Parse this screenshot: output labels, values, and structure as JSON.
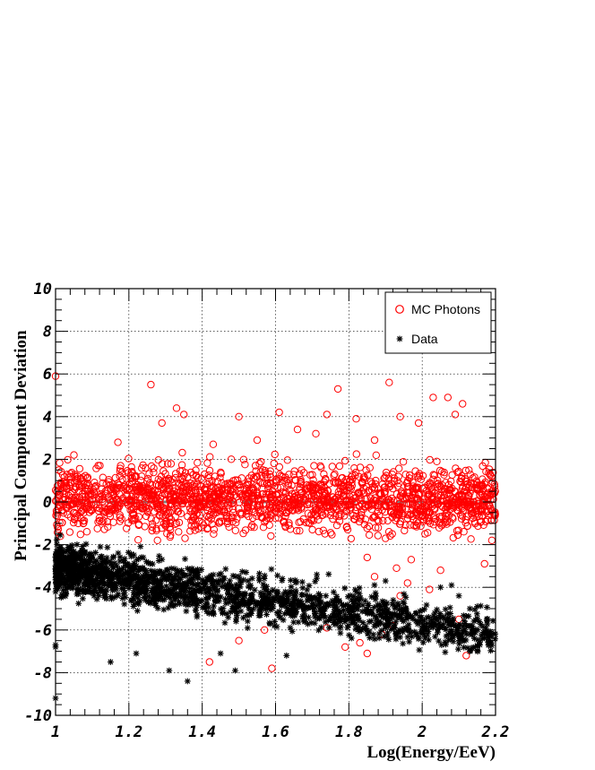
{
  "chart_data": {
    "type": "scatter",
    "title": "",
    "xlabel": "Log(Energy/EeV)",
    "ylabel": "Principal Component Deviation",
    "xlim": [
      1,
      2.2
    ],
    "ylim": [
      -10,
      10
    ],
    "x_ticks": [
      "1",
      "1.2",
      "1.4",
      "1.6",
      "1.8",
      "2",
      "2.2"
    ],
    "y_ticks": [
      "-10",
      "-8",
      "-6",
      "-4",
      "-2",
      "0",
      "2",
      "4",
      "6",
      "8",
      "10"
    ],
    "grid": true,
    "legend_position": "top-right",
    "reference_line": {
      "y": 0,
      "style": "dashed",
      "color": "#808080"
    },
    "series": [
      {
        "name": "MC Photons",
        "marker": "open-circle",
        "color": "#ff0000",
        "points": [
          [
            1.0,
            5.9
          ],
          [
            1.26,
            5.5
          ],
          [
            1.35,
            4.1
          ],
          [
            1.5,
            4.0
          ],
          [
            1.61,
            4.2
          ],
          [
            1.77,
            5.3
          ],
          [
            1.91,
            5.6
          ],
          [
            2.03,
            4.9
          ],
          [
            2.07,
            4.9
          ],
          [
            2.11,
            4.6
          ],
          [
            1.94,
            4.0
          ],
          [
            1.82,
            3.9
          ],
          [
            1.74,
            4.1
          ],
          [
            1.29,
            3.7
          ],
          [
            1.05,
            2.2
          ],
          [
            1.17,
            2.8
          ],
          [
            1.43,
            2.7
          ],
          [
            1.66,
            3.4
          ],
          [
            1.87,
            2.9
          ],
          [
            1.99,
            3.7
          ],
          [
            2.04,
            1.9
          ],
          [
            2.15,
            0.9
          ],
          [
            2.19,
            0.5
          ],
          [
            2.19,
            -1.8
          ],
          [
            2.17,
            -2.9
          ],
          [
            1.97,
            -2.7
          ],
          [
            1.93,
            -3.1
          ],
          [
            1.85,
            -2.6
          ],
          [
            1.79,
            -6.8
          ],
          [
            1.83,
            -6.6
          ],
          [
            1.85,
            -7.1
          ],
          [
            1.87,
            -3.5
          ],
          [
            1.59,
            -7.8
          ],
          [
            1.42,
            -7.5
          ],
          [
            1.5,
            -6.5
          ],
          [
            1.96,
            -3.8
          ],
          [
            2.02,
            -4.1
          ],
          [
            1.94,
            -4.4
          ],
          [
            2.05,
            -3.2
          ],
          [
            1.33,
            4.4
          ],
          [
            1.55,
            2.9
          ],
          [
            1.71,
            3.2
          ],
          [
            2.09,
            4.1
          ],
          [
            1.89,
            -6.2
          ],
          [
            1.92,
            -5.8
          ],
          [
            1.74,
            -5.9
          ],
          [
            2.12,
            -7.2
          ],
          [
            2.1,
            -5.5
          ],
          [
            1.57,
            -6.0
          ]
        ]
      },
      {
        "name": "Data",
        "marker": "star",
        "color": "#000000",
        "points": [
          [
            1.0,
            -9.2
          ],
          [
            1.15,
            -7.5
          ],
          [
            1.31,
            -7.9
          ],
          [
            1.36,
            -8.4
          ],
          [
            1.49,
            -7.9
          ],
          [
            1.22,
            -7.1
          ],
          [
            1.45,
            -7.1
          ],
          [
            1.63,
            -7.2
          ],
          [
            2.05,
            -4.0
          ],
          [
            2.08,
            -3.9
          ],
          [
            2.1,
            -4.4
          ],
          [
            2.13,
            -5.0
          ],
          [
            2.15,
            -4.9
          ],
          [
            2.11,
            -6.5
          ],
          [
            2.13,
            -7.0
          ],
          [
            2.12,
            -6.2
          ],
          [
            1.9,
            -3.7
          ],
          [
            1.0,
            -6.8
          ],
          [
            1.0,
            -6.7
          ]
        ]
      }
    ]
  }
}
